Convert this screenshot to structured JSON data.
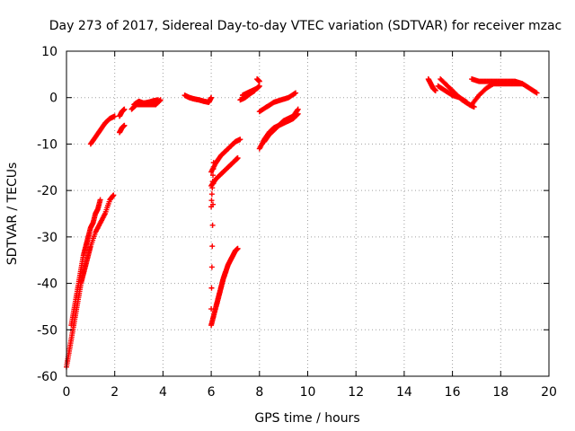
{
  "chart_data": {
    "type": "scatter",
    "title": "Day 273 of 2017, Sidereal Day-to-day VTEC variation (SDTVAR) for receiver mzac",
    "xlabel": "GPS time / hours",
    "ylabel": "SDTVAR / TECUs",
    "xlim": [
      0,
      20
    ],
    "ylim": [
      -60,
      10
    ],
    "xticks": [
      0,
      2,
      4,
      6,
      8,
      10,
      12,
      14,
      16,
      18,
      20
    ],
    "yticks": [
      -60,
      -50,
      -40,
      -30,
      -20,
      -10,
      0,
      10
    ],
    "grid": true,
    "marker": "+",
    "color": "#ff0000",
    "segments": [
      {
        "name": "arc-a",
        "x": [
          0.0,
          0.1,
          0.2,
          0.3,
          0.4,
          0.5,
          0.6,
          0.7,
          0.8,
          0.9,
          1.0,
          1.2,
          1.4,
          1.6,
          1.8,
          1.95
        ],
        "y": [
          -58,
          -55,
          -52,
          -49,
          -46,
          -43,
          -40,
          -38,
          -36,
          -34,
          -32,
          -29,
          -27,
          -25,
          -22,
          -21
        ]
      },
      {
        "name": "arc-b",
        "x": [
          0.2,
          0.3,
          0.4,
          0.5,
          0.6,
          0.7,
          0.8,
          0.9,
          1.0,
          1.1,
          1.2,
          1.3,
          1.4
        ],
        "y": [
          -49,
          -46,
          -43,
          -40,
          -37,
          -34,
          -32,
          -30,
          -28,
          -27,
          -25,
          -24,
          -22
        ]
      },
      {
        "name": "arc-c",
        "x": [
          1.0,
          1.2,
          1.4,
          1.6,
          1.8,
          2.0
        ],
        "y": [
          -10,
          -8.5,
          -7,
          -5.5,
          -4.5,
          -4
        ]
      },
      {
        "name": "arc-d",
        "x": [
          2.2,
          2.3,
          2.4
        ],
        "y": [
          -7.5,
          -6.5,
          -6
        ]
      },
      {
        "name": "arc-e",
        "x": [
          2.2,
          2.3,
          2.4
        ],
        "y": [
          -4,
          -3,
          -2.5
        ]
      },
      {
        "name": "arc-f",
        "x": [
          2.7,
          2.9,
          3.1,
          3.3,
          3.5,
          3.7,
          3.9
        ],
        "y": [
          -2.5,
          -1.5,
          -1.5,
          -1.5,
          -1.5,
          -1.5,
          -0.5
        ]
      },
      {
        "name": "arc-g",
        "x": [
          2.8,
          3.0,
          3.2,
          3.4,
          3.6,
          3.8
        ],
        "y": [
          -1.5,
          -0.8,
          -1.2,
          -1.0,
          -0.7,
          -0.5
        ]
      },
      {
        "name": "arc-h",
        "x": [
          4.9,
          5.1,
          5.3,
          5.5,
          5.7,
          5.9,
          6.0
        ],
        "y": [
          0.5,
          0,
          -0.3,
          -0.5,
          -0.8,
          -1,
          0
        ]
      },
      {
        "name": "arc-i",
        "x": [
          6.0,
          6.2,
          6.4,
          6.6,
          6.8,
          7.0,
          7.1
        ],
        "y": [
          -19,
          -17.5,
          -16.5,
          -15.5,
          -14.5,
          -13.5,
          -13
        ]
      },
      {
        "name": "arc-j",
        "x": [
          6.0,
          6.2,
          6.4,
          6.6,
          6.8,
          7.0,
          7.2
        ],
        "y": [
          -16,
          -14,
          -12.5,
          -11.5,
          -10.5,
          -9.5,
          -9
        ]
      },
      {
        "name": "arc-k",
        "x": [
          6.0,
          6.1,
          6.2,
          6.3,
          6.4,
          6.5,
          6.6,
          6.7,
          6.8,
          6.9,
          7.0,
          7.1
        ],
        "y": [
          -49,
          -47,
          -45,
          -43,
          -41,
          -39,
          -37.5,
          -36,
          -35,
          -34,
          -33,
          -32.5
        ]
      },
      {
        "name": "arc-l",
        "x": [
          6.2,
          6.3,
          6.4,
          6.5,
          6.6
        ],
        "y": [
          -45,
          -43,
          -41,
          -39,
          -37.5
        ]
      },
      {
        "name": "outliers",
        "x": [
          6.0,
          6.1,
          6.0
        ],
        "y": [
          -23.5,
          -14,
          -45.5
        ]
      },
      {
        "name": "arc-m",
        "x": [
          7.3,
          7.5,
          7.7,
          7.9,
          8.0
        ],
        "y": [
          0.5,
          1,
          1.5,
          2,
          2.5
        ]
      },
      {
        "name": "arc-n",
        "x": [
          7.2,
          7.4,
          7.6,
          7.8
        ],
        "y": [
          -0.5,
          0,
          0.8,
          1.5
        ]
      },
      {
        "name": "arc-o",
        "x": [
          7.9,
          8.0
        ],
        "y": [
          4,
          3.5
        ]
      },
      {
        "name": "arc-p",
        "x": [
          8.0,
          8.3,
          8.6,
          8.9,
          9.2,
          9.5
        ],
        "y": [
          -3,
          -2,
          -1,
          -0.5,
          0,
          1
        ]
      },
      {
        "name": "arc-q",
        "x": [
          8.0,
          8.2,
          8.4,
          8.6,
          8.8,
          9.0,
          9.2,
          9.4,
          9.6
        ],
        "y": [
          -11,
          -9,
          -7.5,
          -6.5,
          -6,
          -5.5,
          -5,
          -4.5,
          -3.5
        ]
      },
      {
        "name": "arc-r",
        "x": [
          8.2,
          8.4,
          8.6,
          8.8,
          9.0,
          9.2,
          9.4,
          9.6
        ],
        "y": [
          -9.5,
          -8,
          -7,
          -6,
          -5,
          -4.5,
          -4,
          -2.5
        ]
      },
      {
        "name": "arc-s",
        "x": [
          15.0,
          15.1,
          15.2,
          15.3
        ],
        "y": [
          4,
          3,
          2,
          1.5
        ]
      },
      {
        "name": "arc-t",
        "x": [
          15.5,
          15.8,
          16.1,
          16.4,
          16.7,
          16.9
        ],
        "y": [
          4,
          2.5,
          1,
          -0.5,
          -1.5,
          -2
        ]
      },
      {
        "name": "arc-u",
        "x": [
          15.4,
          15.7,
          16.0,
          16.3,
          16.6
        ],
        "y": [
          2.5,
          1.5,
          0.5,
          0,
          -1
        ]
      },
      {
        "name": "arc-v",
        "x": [
          16.8,
          17.1,
          17.4,
          17.7,
          18.0,
          18.3,
          18.6,
          18.9,
          19.2,
          19.5
        ],
        "y": [
          -1.5,
          0.5,
          2,
          3,
          3,
          3,
          3,
          3,
          2,
          1
        ]
      },
      {
        "name": "arc-w",
        "x": [
          16.8,
          17.1,
          17.4,
          17.7,
          18.0,
          18.3,
          18.6,
          18.9
        ],
        "y": [
          4,
          3.5,
          3.5,
          3.5,
          3.5,
          3.5,
          3.5,
          3
        ]
      }
    ]
  }
}
